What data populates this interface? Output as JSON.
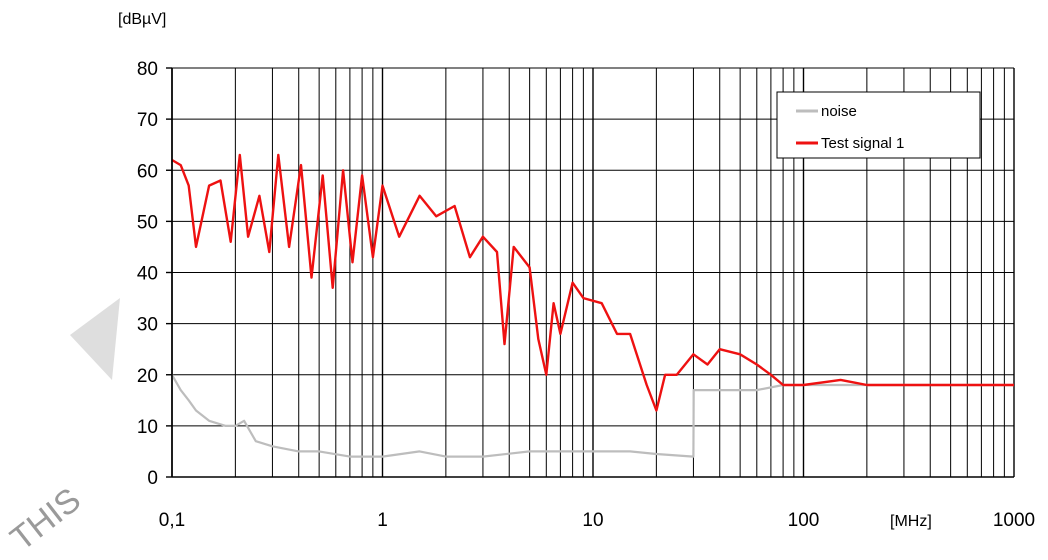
{
  "chart_data": {
    "type": "line",
    "xscale": "log",
    "xlim": [
      0.1,
      1000
    ],
    "ylim": [
      0,
      80
    ],
    "ylabel": "[dBµV]",
    "xlabel": "[MHz]",
    "grid": true,
    "legend_position": "top-right",
    "x_tick_labels": [
      {
        "x": 0.1,
        "label": "0,1"
      },
      {
        "x": 1,
        "label": "1"
      },
      {
        "x": 10,
        "label": "10"
      },
      {
        "x": 100,
        "label": "100"
      },
      {
        "x": 1000,
        "label": "1000"
      }
    ],
    "y_ticks": [
      0,
      10,
      20,
      30,
      40,
      50,
      60,
      70,
      80
    ],
    "series": [
      {
        "name": "noise",
        "color": "#bdbdbd",
        "points": [
          [
            0.1,
            20
          ],
          [
            0.11,
            17
          ],
          [
            0.12,
            15
          ],
          [
            0.13,
            13
          ],
          [
            0.15,
            11
          ],
          [
            0.18,
            10
          ],
          [
            0.2,
            10
          ],
          [
            0.22,
            11
          ],
          [
            0.25,
            7
          ],
          [
            0.3,
            6
          ],
          [
            0.4,
            5
          ],
          [
            0.5,
            5
          ],
          [
            0.7,
            4
          ],
          [
            1,
            4
          ],
          [
            1.5,
            5
          ],
          [
            2,
            4
          ],
          [
            3,
            4
          ],
          [
            5,
            5
          ],
          [
            7,
            5
          ],
          [
            10,
            5
          ],
          [
            15,
            5
          ],
          [
            20,
            4.5
          ],
          [
            30,
            4
          ],
          [
            30.1,
            17
          ],
          [
            40,
            17
          ],
          [
            60,
            17
          ],
          [
            80,
            18
          ],
          [
            100,
            18
          ],
          [
            200,
            18
          ],
          [
            400,
            18
          ],
          [
            700,
            18
          ],
          [
            1000,
            18
          ]
        ]
      },
      {
        "name": "Test signal 1",
        "color": "#ee1111",
        "points": [
          [
            0.1,
            62
          ],
          [
            0.11,
            61
          ],
          [
            0.12,
            57
          ],
          [
            0.13,
            45
          ],
          [
            0.15,
            57
          ],
          [
            0.17,
            58
          ],
          [
            0.19,
            46
          ],
          [
            0.21,
            63
          ],
          [
            0.23,
            47
          ],
          [
            0.26,
            55
          ],
          [
            0.29,
            44
          ],
          [
            0.32,
            63
          ],
          [
            0.36,
            45
          ],
          [
            0.41,
            61
          ],
          [
            0.46,
            39
          ],
          [
            0.52,
            59
          ],
          [
            0.58,
            37
          ],
          [
            0.65,
            60
          ],
          [
            0.72,
            42
          ],
          [
            0.8,
            59
          ],
          [
            0.9,
            43
          ],
          [
            1,
            57
          ],
          [
            1.2,
            47
          ],
          [
            1.5,
            55
          ],
          [
            1.8,
            51
          ],
          [
            2.2,
            53
          ],
          [
            2.6,
            43
          ],
          [
            3,
            47
          ],
          [
            3.5,
            44
          ],
          [
            3.8,
            26
          ],
          [
            4.2,
            45
          ],
          [
            5,
            41
          ],
          [
            5.5,
            27
          ],
          [
            6,
            20
          ],
          [
            6.5,
            34
          ],
          [
            7,
            28
          ],
          [
            8,
            38
          ],
          [
            9,
            35
          ],
          [
            11,
            34
          ],
          [
            13,
            28
          ],
          [
            15,
            28
          ],
          [
            18,
            18
          ],
          [
            20,
            13
          ],
          [
            22,
            20
          ],
          [
            25,
            20
          ],
          [
            30,
            24
          ],
          [
            35,
            22
          ],
          [
            40,
            25
          ],
          [
            50,
            24
          ],
          [
            60,
            22
          ],
          [
            70,
            20
          ],
          [
            80,
            18
          ],
          [
            100,
            18
          ],
          [
            150,
            19
          ],
          [
            200,
            18
          ],
          [
            300,
            18
          ],
          [
            500,
            18
          ],
          [
            700,
            18
          ],
          [
            1000,
            18
          ]
        ]
      }
    ]
  },
  "watermark_text": "THIS"
}
